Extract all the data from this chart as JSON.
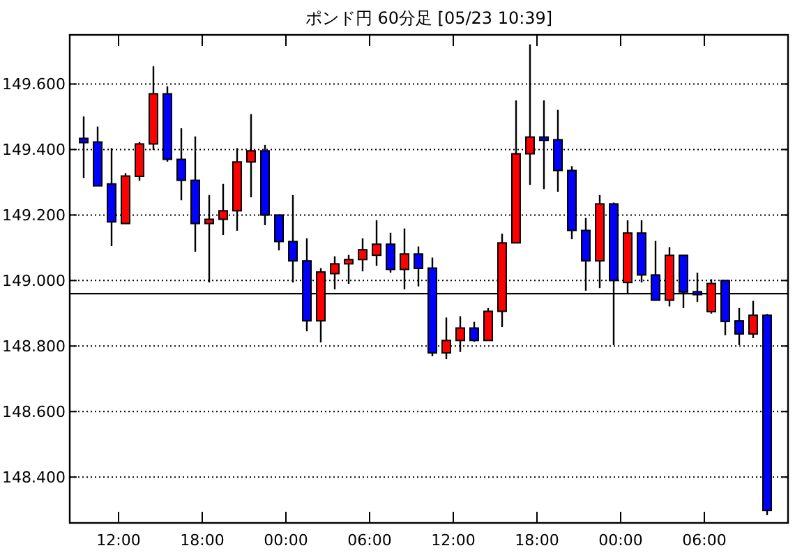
{
  "chart_data": {
    "type": "candlestick",
    "title": "ポンド円 60分足 [05/23 10:39]",
    "x": [
      "--05-21T09:30",
      "--05-21T10:30",
      "--05-21T11:30",
      "--05-21T12:30",
      "--05-21T13:30",
      "--05-21T14:30",
      "--05-21T15:30",
      "--05-21T16:30",
      "--05-21T17:30",
      "--05-21T18:30",
      "--05-21T19:30",
      "--05-21T20:30",
      "--05-21T21:30",
      "--05-21T22:30",
      "--05-21T23:30",
      "--05-22T00:30",
      "--05-22T01:30",
      "--05-22T02:30",
      "--05-22T03:30",
      "--05-22T04:30",
      "--05-22T05:30",
      "--05-22T06:30",
      "--05-22T07:30",
      "--05-22T08:30",
      "--05-22T09:30",
      "--05-22T10:30",
      "--05-22T11:30",
      "--05-22T12:30",
      "--05-22T13:30",
      "--05-22T14:30",
      "--05-22T15:30",
      "--05-22T16:30",
      "--05-22T17:30",
      "--05-22T18:30",
      "--05-22T19:30",
      "--05-22T20:30",
      "--05-22T21:30",
      "--05-22T22:30",
      "--05-22T23:30",
      "--05-23T00:30",
      "--05-23T01:30",
      "--05-23T02:30",
      "--05-23T03:30",
      "--05-23T04:30",
      "--05-23T05:30",
      "--05-23T06:30",
      "--05-23T07:30",
      "--05-23T08:30",
      "--05-23T09:30",
      "--05-23T10:30"
    ],
    "ohlc": [
      [
        149.434,
        149.501,
        149.313,
        149.421
      ],
      [
        149.423,
        149.47,
        149.289,
        149.289
      ],
      [
        149.295,
        149.404,
        149.105,
        149.179
      ],
      [
        149.174,
        149.328,
        149.174,
        149.319
      ],
      [
        149.318,
        149.423,
        149.305,
        149.417
      ],
      [
        149.417,
        149.654,
        149.399,
        149.57
      ],
      [
        149.57,
        149.593,
        149.363,
        149.37
      ],
      [
        149.37,
        149.465,
        149.245,
        149.306
      ],
      [
        149.306,
        149.44,
        149.088,
        149.174
      ],
      [
        149.174,
        149.261,
        148.994,
        149.187
      ],
      [
        149.187,
        149.295,
        149.139,
        149.213
      ],
      [
        149.213,
        149.404,
        149.152,
        149.362
      ],
      [
        149.362,
        149.508,
        149.254,
        149.396
      ],
      [
        149.396,
        149.414,
        149.169,
        149.2
      ],
      [
        149.2,
        149.2,
        149.092,
        149.119
      ],
      [
        149.119,
        149.261,
        148.994,
        149.06
      ],
      [
        149.06,
        149.129,
        148.845,
        148.877
      ],
      [
        148.877,
        149.038,
        148.811,
        149.026
      ],
      [
        149.021,
        149.074,
        148.973,
        149.051
      ],
      [
        149.051,
        149.078,
        148.99,
        149.064
      ],
      [
        149.064,
        149.129,
        149.028,
        149.094
      ],
      [
        149.077,
        149.184,
        149.045,
        149.111
      ],
      [
        149.111,
        149.146,
        149.024,
        149.034
      ],
      [
        149.034,
        149.159,
        148.973,
        149.081
      ],
      [
        149.081,
        149.104,
        148.982,
        149.037
      ],
      [
        149.038,
        149.07,
        148.769,
        148.779
      ],
      [
        148.779,
        148.887,
        148.76,
        148.817
      ],
      [
        148.817,
        148.891,
        148.782,
        148.855
      ],
      [
        148.855,
        148.874,
        148.813,
        148.817
      ],
      [
        148.817,
        148.916,
        148.817,
        148.906
      ],
      [
        148.906,
        149.143,
        148.858,
        149.115
      ],
      [
        149.115,
        149.55,
        149.115,
        149.387
      ],
      [
        149.387,
        149.721,
        149.292,
        149.438
      ],
      [
        149.438,
        149.55,
        149.279,
        149.428
      ],
      [
        149.43,
        149.521,
        149.271,
        149.336
      ],
      [
        149.336,
        149.349,
        149.126,
        149.153
      ],
      [
        149.153,
        149.191,
        148.969,
        149.06
      ],
      [
        149.06,
        149.261,
        148.977,
        149.234
      ],
      [
        149.234,
        149.238,
        148.803,
        149.0
      ],
      [
        148.994,
        149.184,
        148.959,
        149.145
      ],
      [
        149.145,
        149.184,
        148.994,
        149.017
      ],
      [
        149.017,
        149.121,
        148.94,
        148.94
      ],
      [
        148.94,
        149.102,
        148.921,
        149.077
      ],
      [
        149.077,
        149.077,
        148.916,
        148.965
      ],
      [
        148.966,
        149.024,
        148.935,
        148.957
      ],
      [
        148.905,
        149.004,
        148.899,
        148.991
      ],
      [
        149.0,
        149.0,
        148.833,
        148.875
      ],
      [
        148.877,
        148.916,
        148.803,
        148.837
      ],
      [
        148.837,
        148.938,
        148.824,
        148.894
      ],
      [
        148.894,
        148.898,
        148.284,
        148.298
      ]
    ],
    "colors": [
      "#0000ff",
      "#0000ff",
      "#0000ff",
      "#ff0000",
      "#ff0000",
      "#ff0000",
      "#0000ff",
      "#0000ff",
      "#0000ff",
      "#ff0000",
      "#ff0000",
      "#ff0000",
      "#ff0000",
      "#0000ff",
      "#0000ff",
      "#0000ff",
      "#0000ff",
      "#ff0000",
      "#ff0000",
      "#ff0000",
      "#ff0000",
      "#ff0000",
      "#0000ff",
      "#ff0000",
      "#0000ff",
      "#0000ff",
      "#ff0000",
      "#ff0000",
      "#0000ff",
      "#ff0000",
      "#ff0000",
      "#ff0000",
      "#ff0000",
      "#0000ff",
      "#0000ff",
      "#0000ff",
      "#0000ff",
      "#ff0000",
      "#0000ff",
      "#ff0000",
      "#0000ff",
      "#0000ff",
      "#ff0000",
      "#0000ff",
      "#0000ff",
      "#ff0000",
      "#0000ff",
      "#0000ff",
      "#ff0000",
      "#0000ff"
    ],
    "xlim": [
      "--05-21T08:30",
      "--05-23T12:00"
    ],
    "xticks": [
      {
        "value": "--05-21T12:00",
        "label": "12:00"
      },
      {
        "value": "--05-21T18:00",
        "label": "18:00"
      },
      {
        "value": "--05-22T00:00",
        "label": "00:00"
      },
      {
        "value": "--05-22T06:00",
        "label": "06:00"
      },
      {
        "value": "--05-22T12:00",
        "label": "12:00"
      },
      {
        "value": "--05-22T18:00",
        "label": "18:00"
      },
      {
        "value": "--05-23T00:00",
        "label": "00:00"
      },
      {
        "value": "--05-23T06:00",
        "label": "06:00"
      }
    ],
    "ylim": [
      148.26,
      149.75
    ],
    "yticks": [
      {
        "value": 148.4,
        "label": "148.400"
      },
      {
        "value": 148.6,
        "label": "148.600"
      },
      {
        "value": 148.8,
        "label": "148.800"
      },
      {
        "value": 149.0,
        "label": "149.000"
      },
      {
        "value": 149.2,
        "label": "149.200"
      },
      {
        "value": 149.4,
        "label": "149.400"
      },
      {
        "value": 149.6,
        "label": "149.600"
      }
    ],
    "grid": "y",
    "ref_lines": [
      {
        "axis": "y",
        "value": 148.96,
        "color": "#000000",
        "line_style": "solid"
      }
    ]
  }
}
